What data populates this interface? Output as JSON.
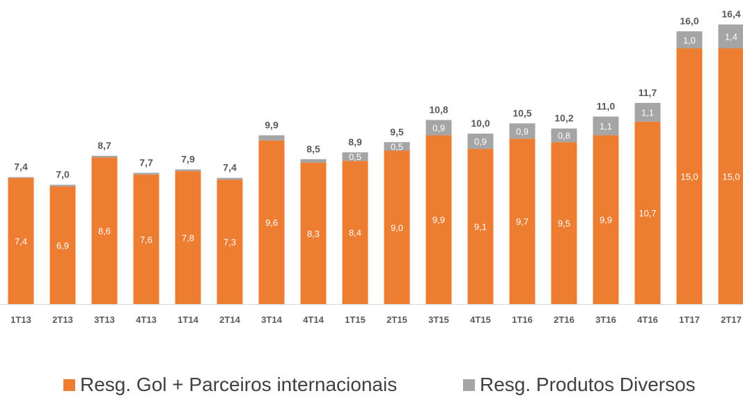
{
  "chart_data": {
    "type": "bar",
    "stacked": true,
    "categories": [
      "1T13",
      "2T13",
      "3T13",
      "4T13",
      "1T14",
      "2T14",
      "3T14",
      "4T14",
      "1T15",
      "2T15",
      "3T15",
      "4T15",
      "1T16",
      "2T16",
      "3T16",
      "4T16",
      "1T17",
      "2T17"
    ],
    "series": [
      {
        "name": "Resg. Gol + Parceiros internacionais",
        "color": "#ED7D31",
        "values": [
          7.4,
          6.9,
          8.6,
          7.6,
          7.8,
          7.3,
          9.6,
          8.3,
          8.4,
          9.0,
          9.9,
          9.1,
          9.7,
          9.5,
          9.9,
          10.7,
          15.0,
          15.0
        ],
        "labels": [
          "7,4",
          "6,9",
          "8,6",
          "7,6",
          "7,8",
          "7,3",
          "9,6",
          "8,3",
          "8,4",
          "9,0",
          "9,9",
          "9,1",
          "9,7",
          "9,5",
          "9,9",
          "10,7",
          "15,0",
          "15,0"
        ]
      },
      {
        "name": "Resg. Produtos Diversos",
        "color": "#A5A5A5",
        "values": [
          0.05,
          0.1,
          0.1,
          0.1,
          0.1,
          0.1,
          0.3,
          0.2,
          0.5,
          0.5,
          0.9,
          0.9,
          0.9,
          0.8,
          1.1,
          1.1,
          1.0,
          1.4
        ],
        "labels": [
          "",
          "",
          "",
          "",
          "",
          "",
          "",
          "",
          "0,5",
          "0,5",
          "0,9",
          "0,9",
          "0,9",
          "0,8",
          "1,1",
          "1,1",
          "1,0",
          "1,4"
        ]
      }
    ],
    "totals": [
      7.4,
      7.0,
      8.7,
      7.7,
      7.9,
      7.4,
      9.9,
      8.5,
      8.9,
      9.5,
      10.8,
      10.0,
      10.5,
      10.2,
      11.0,
      11.7,
      16.0,
      16.4
    ],
    "total_labels": [
      "7,4",
      "7,0",
      "8,7",
      "7,7",
      "7,9",
      "7,4",
      "9,9",
      "8,5",
      "8,9",
      "9,5",
      "10,8",
      "10,0",
      "10,5",
      "10,2",
      "11,0",
      "11,7",
      "16,0",
      "16,4"
    ],
    "title": "",
    "xlabel": "",
    "ylabel": "",
    "ylim": [
      0,
      16.4
    ],
    "grid": false,
    "legend_position": "bottom"
  },
  "legend": {
    "items": [
      {
        "label": "Resg. Gol + Parceiros internacionais",
        "color": "#ED7D31"
      },
      {
        "label": "Resg. Produtos Diversos",
        "color": "#A5A5A5"
      }
    ]
  },
  "colors": {
    "inner_label": "#FFFFFF",
    "total_label": "#595959",
    "category_label": "#595959",
    "axis_line": "#D9D9D9"
  }
}
